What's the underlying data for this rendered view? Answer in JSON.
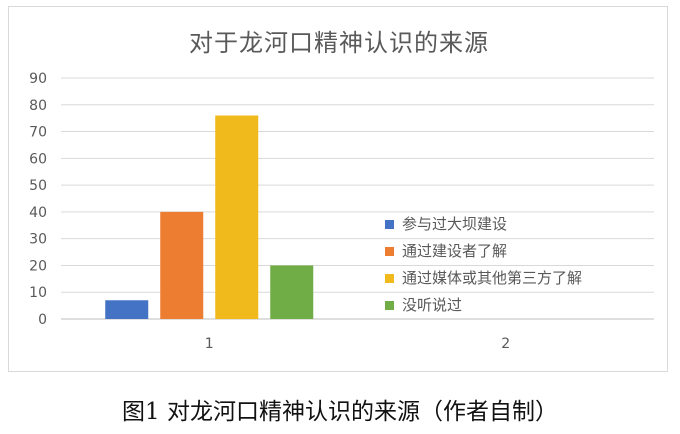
{
  "chart_data": {
    "type": "bar",
    "title": "对于龙河口精神认识的来源",
    "categories": [
      "1",
      "2"
    ],
    "ylim": [
      0,
      90
    ],
    "yticks": [
      0,
      10,
      20,
      30,
      40,
      50,
      60,
      70,
      80,
      90
    ],
    "grid": true,
    "legend_position": "right",
    "series": [
      {
        "name": "参与过大坝建设",
        "color": "#4472c4",
        "values": [
          7,
          0
        ]
      },
      {
        "name": "通过建设者了解",
        "color": "#ed7d31",
        "values": [
          40,
          0
        ]
      },
      {
        "name": "通过媒体或其他第三方了解",
        "color": "#f0b91c",
        "values": [
          76,
          0
        ]
      },
      {
        "name": "没听说过",
        "color": "#70ad47",
        "values": [
          20,
          0
        ]
      }
    ]
  },
  "caption": "图1 对龙河口精神认识的来源（作者自制）"
}
